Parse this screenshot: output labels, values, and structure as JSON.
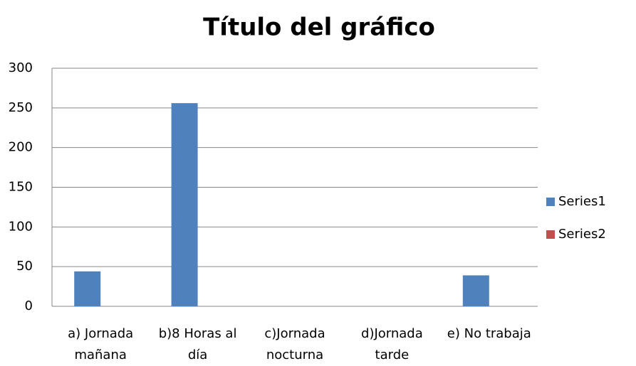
{
  "chart_data": {
    "type": "bar",
    "title": "Título del gráfico",
    "categories": [
      "a) Jornada mañana",
      "b)8 Horas al día",
      "c)Jornada nocturna",
      "d)Jornada tarde",
      "e) No trabaja"
    ],
    "series": [
      {
        "name": "Series1",
        "color": "#4f81bd",
        "values": [
          44,
          256,
          0,
          0,
          39
        ]
      },
      {
        "name": "Series2",
        "color": "#c0504d",
        "values": [
          0,
          0,
          0,
          0,
          0
        ]
      }
    ],
    "ylim": [
      0,
      300
    ],
    "yticks": [
      0,
      50,
      100,
      150,
      200,
      250,
      300
    ],
    "grid": true,
    "legend": "right"
  }
}
